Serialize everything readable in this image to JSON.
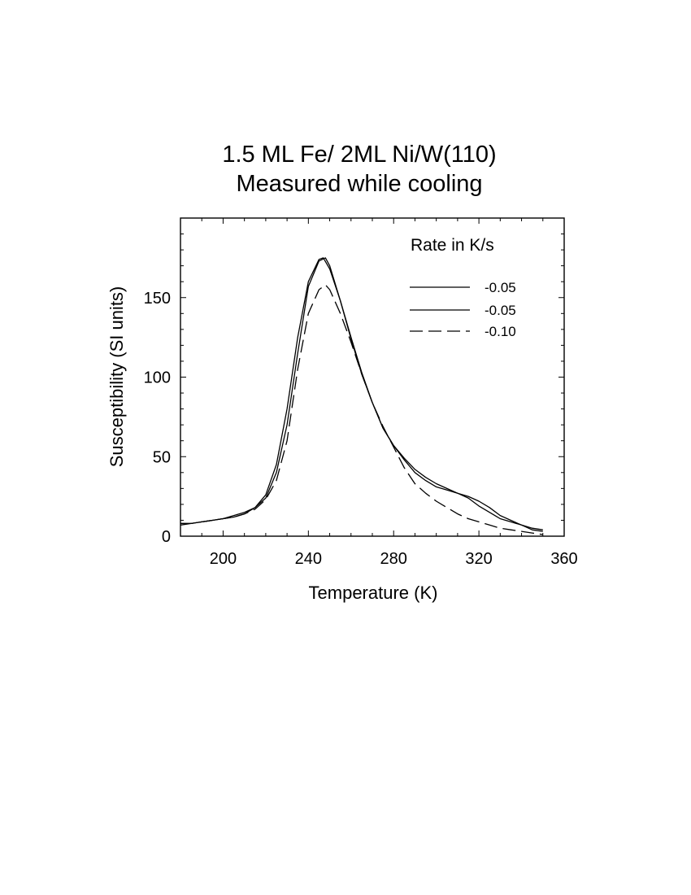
{
  "chart_data": {
    "type": "line",
    "title": [
      "1.5 ML Fe/ 2ML Ni/W(110)",
      "Measured while cooling"
    ],
    "xlabel": "Temperature (K)",
    "ylabel": "Susceptibility (SI units)",
    "xlim": [
      180,
      360
    ],
    "ylim": [
      0,
      200
    ],
    "xticks": [
      200,
      240,
      280,
      320,
      360
    ],
    "xtick_labels": [
      "200",
      "240",
      "280",
      "320",
      "360"
    ],
    "yticks": [
      0,
      50,
      100,
      150
    ],
    "ytick_labels": [
      "0",
      "50",
      "100",
      "150"
    ],
    "grid": false,
    "legend": {
      "title": "Rate in K/s",
      "position": "top-right",
      "entries": [
        "-0.05",
        "-0.05",
        "-0.10"
      ]
    },
    "series": [
      {
        "name": "-0.05",
        "style": "solid",
        "x": [
          180,
          185,
          190,
          195,
          200,
          205,
          210,
          215,
          220,
          225,
          230,
          235,
          240,
          245,
          247,
          250,
          255,
          260,
          265,
          270,
          275,
          280,
          285,
          290,
          295,
          300,
          305,
          310,
          315,
          320,
          325,
          330,
          335,
          340,
          345,
          350
        ],
        "y": [
          8,
          8,
          9,
          10,
          11,
          13,
          15,
          18,
          26,
          45,
          80,
          125,
          160,
          174,
          175,
          168,
          148,
          125,
          103,
          84,
          68,
          57,
          48,
          40,
          35,
          31,
          29,
          27,
          25,
          22,
          18,
          13,
          10,
          7,
          4,
          3
        ]
      },
      {
        "name": "-0.05",
        "style": "solid",
        "x": [
          180,
          185,
          190,
          195,
          200,
          205,
          210,
          215,
          220,
          225,
          230,
          235,
          240,
          245,
          248,
          250,
          255,
          260,
          265,
          270,
          275,
          280,
          285,
          290,
          295,
          300,
          305,
          310,
          315,
          320,
          325,
          330,
          335,
          340,
          345,
          350
        ],
        "y": [
          7,
          8,
          9,
          10,
          11,
          12,
          14,
          18,
          24,
          40,
          70,
          115,
          157,
          173,
          175,
          170,
          148,
          124,
          102,
          84,
          68,
          57,
          49,
          42,
          37,
          33,
          30,
          27,
          24,
          19,
          15,
          11,
          9,
          7,
          5,
          4
        ]
      },
      {
        "name": "-0.10",
        "style": "dashed",
        "x": [
          180,
          185,
          190,
          195,
          200,
          205,
          210,
          215,
          220,
          225,
          230,
          235,
          240,
          245,
          248,
          250,
          255,
          260,
          265,
          270,
          275,
          280,
          285,
          290,
          295,
          300,
          305,
          310,
          315,
          320,
          325,
          330,
          335,
          340,
          345,
          350
        ],
        "y": [
          8,
          8,
          9,
          10,
          11,
          12,
          14,
          17,
          23,
          35,
          60,
          105,
          140,
          155,
          158,
          155,
          140,
          122,
          102,
          84,
          69,
          56,
          43,
          33,
          27,
          22,
          18,
          14,
          11,
          9,
          7,
          5,
          4,
          3,
          2,
          1
        ]
      }
    ]
  }
}
